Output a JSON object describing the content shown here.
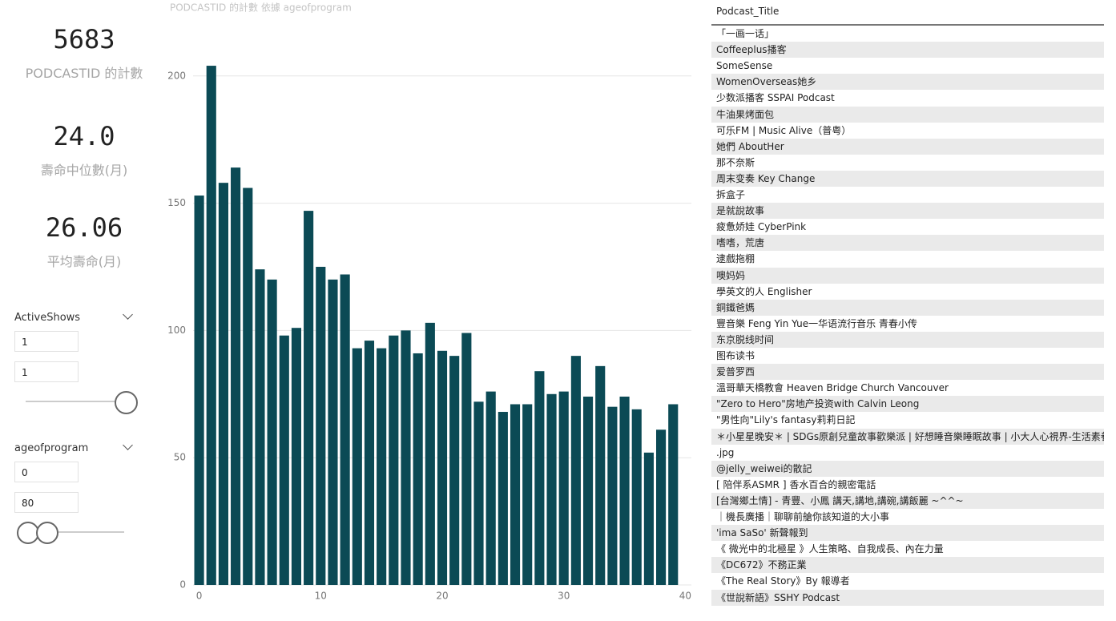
{
  "cards": [
    {
      "value": "5683",
      "label": "PODCASTID 的計數"
    },
    {
      "value": "24.0",
      "label": "壽命中位數(月)"
    },
    {
      "value": "26.06",
      "label": "平均壽命(月)"
    }
  ],
  "slicers": [
    {
      "title": "ActiveShows",
      "from": "1",
      "to": "1"
    },
    {
      "title": "ageofprogram",
      "from": "0",
      "to": "80"
    }
  ],
  "chart_data": {
    "type": "bar",
    "title": "PODCASTID 的計數 依據 ageofprogram",
    "color": "#0b4a55",
    "x": [
      0,
      1,
      2,
      3,
      4,
      5,
      6,
      7,
      8,
      9,
      10,
      11,
      12,
      13,
      14,
      15,
      16,
      17,
      18,
      19,
      20,
      21,
      22,
      23,
      24,
      25,
      26,
      27,
      28,
      29,
      30,
      31,
      32,
      33,
      34,
      35,
      36,
      37,
      38,
      39
    ],
    "values": [
      153,
      204,
      158,
      164,
      156,
      124,
      120,
      98,
      101,
      147,
      125,
      120,
      122,
      93,
      96,
      93,
      98,
      100,
      91,
      103,
      92,
      90,
      99,
      72,
      76,
      68,
      71,
      71,
      84,
      75,
      76,
      90,
      74,
      86,
      70,
      74,
      69,
      52,
      61,
      71
    ],
    "xlim": [
      -0.5,
      40.5
    ],
    "xticks": [
      0,
      10,
      20,
      30,
      40
    ],
    "ylim": [
      0,
      210
    ],
    "yticks": [
      0,
      50,
      100,
      150,
      200
    ],
    "grid": true
  },
  "table": {
    "header": "Podcast_Title",
    "rows": [
      "「一画一话」",
      "Coffeeplus播客",
      "SomeSense",
      "WomenOverseas她乡",
      "少数派播客 SSPAI Podcast",
      "牛油果烤面包",
      "可乐FM | Music Alive（普粤）",
      "她們 AboutHer",
      "那不奈斯",
      "周末变奏 Key Change",
      "拆盒子",
      "是就說故事",
      "疲惫娇娃 CyberPink",
      "嗜嗜，荒唐",
      "逮戲拖棚",
      "噢妈妈",
      "學英文的人 Englisher",
      "銅鐵爸媽",
      "豐音樂 Feng Yin Yue一华语流行音乐 青春小传",
      "东京脱线时间",
      "图布读书",
      "爱普罗西",
      " 溫哥華天橋教會 Heaven Bridge Church Vancouver",
      "\"Zero to Hero\"房地产投资with Calvin Leong",
      "\"男性向\"Lily's fantasy莉莉日記",
      "＊小星星晚安＊ | SDGs原創兒童故事歡樂派 | 好想睡音樂睡眠故事 | 小大人心視界-生活素養",
      ".jpg",
      "@jelly_weiwei的散記",
      "[ 陪伴系ASMR ] 香水百合的親密電話",
      "[台灣鄉土情] - 青豐、小鳳 講天,講地,講碗,講飯麗 ~^^~",
      "｜機長廣播｜聊聊前艙你該知道的大小事",
      "'ima SaSo' 新聲報到",
      "《 微光中的北極星 》人生策略、自我成長、內在力量",
      "《DC672》不務正業",
      "《The Real Story》By 報導者",
      "《世說新語》SSHY Podcast"
    ]
  }
}
